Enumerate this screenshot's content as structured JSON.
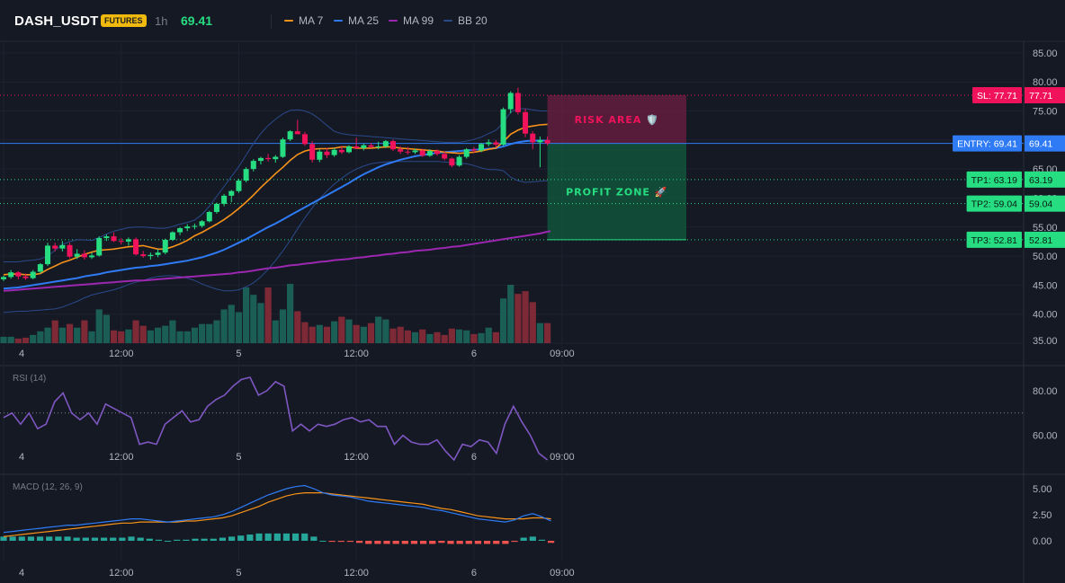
{
  "header": {
    "symbol": "DASH_USDT",
    "badge": "FUTURES",
    "interval": "1h",
    "last_price": "69.41",
    "legend": [
      {
        "label": "MA 7",
        "color": "#f7931a"
      },
      {
        "label": "MA 25",
        "color": "#2f7bf5"
      },
      {
        "label": "MA 99",
        "color": "#9c27b0"
      },
      {
        "label": "BB 20",
        "color": "#2a4a8a"
      }
    ]
  },
  "colors": {
    "up": "#26de81",
    "down": "#f0135b",
    "vol_up": "#1b5e55",
    "vol_down": "#7e2936",
    "macd_line": "#2f7bf5",
    "signal_line": "#f7931a",
    "rsi_line": "#7e57c2"
  },
  "x_axis": {
    "labels": [
      {
        "t": 0,
        "text": "4"
      },
      {
        "t": 16,
        "text": "12:00"
      },
      {
        "t": 32,
        "text": "5"
      },
      {
        "t": 48,
        "text": "12:00"
      },
      {
        "t": 64,
        "text": "6"
      },
      {
        "t": 76,
        "text": "09:00"
      }
    ]
  },
  "levels": {
    "sl": {
      "value": 77.71,
      "tag": "SL: 77.71",
      "axis": "77.71"
    },
    "entry": {
      "value": 69.41,
      "tag": "ENTRY: 69.41",
      "axis": "69.41"
    },
    "tps": [
      {
        "value": 63.19,
        "tag": "TP1: 63.19",
        "axis": "63.19"
      },
      {
        "value": 59.04,
        "tag": "TP2: 59.04",
        "axis": "59.04"
      },
      {
        "value": 52.81,
        "tag": "TP3: 52.81",
        "axis": "52.81"
      }
    ]
  },
  "zones": {
    "risk_label": "RISK AREA 🛡️",
    "profit_label": "PROFIT ZONE 🚀"
  },
  "chart_data": [
    {
      "type": "candlestick",
      "title": "DASH_USDT 1h",
      "ylim": [
        35,
        87
      ],
      "y_ticks": [
        "85.00",
        "80.00",
        "75.00",
        "70.00",
        "65.00",
        "60.00",
        "55.00",
        "50.00",
        "45.00",
        "40.00",
        "35.00"
      ],
      "x_labels": [
        "4",
        "12:00",
        "5",
        "12:00",
        "6",
        "09:00"
      ],
      "ohlc": [
        [
          46.0,
          46.6,
          45.7,
          46.4
        ],
        [
          46.4,
          47.6,
          46.1,
          47.2
        ],
        [
          47.2,
          47.4,
          46.0,
          46.5
        ],
        [
          46.5,
          47.0,
          45.9,
          46.2
        ],
        [
          46.2,
          47.6,
          46.0,
          47.3
        ],
        [
          47.3,
          48.8,
          47.0,
          48.6
        ],
        [
          48.6,
          52.3,
          48.3,
          51.8
        ],
        [
          51.8,
          52.3,
          50.8,
          51.3
        ],
        [
          51.3,
          52.6,
          50.8,
          51.9
        ],
        [
          51.9,
          52.3,
          49.6,
          49.9
        ],
        [
          49.9,
          51.2,
          49.5,
          50.4
        ],
        [
          50.4,
          51.0,
          49.4,
          49.8
        ],
        [
          49.8,
          50.6,
          49.5,
          50.1
        ],
        [
          50.1,
          53.4,
          49.9,
          53.1
        ],
        [
          53.1,
          53.7,
          52.6,
          53.4
        ],
        [
          53.4,
          54.1,
          52.4,
          52.6
        ],
        [
          52.6,
          53.1,
          52.0,
          52.5
        ],
        [
          52.5,
          53.2,
          51.8,
          52.9
        ],
        [
          52.9,
          53.2,
          50.1,
          50.3
        ],
        [
          50.3,
          50.9,
          49.7,
          50.0
        ],
        [
          50.0,
          50.6,
          49.4,
          50.2
        ],
        [
          50.2,
          51.2,
          49.8,
          50.6
        ],
        [
          50.6,
          53.0,
          50.3,
          52.8
        ],
        [
          52.8,
          54.3,
          52.6,
          54.1
        ],
        [
          54.1,
          55.0,
          53.6,
          54.8
        ],
        [
          54.8,
          55.5,
          54.3,
          55.1
        ],
        [
          55.1,
          55.6,
          54.6,
          55.2
        ],
        [
          55.2,
          56.2,
          54.9,
          56.0
        ],
        [
          56.0,
          57.8,
          55.8,
          57.6
        ],
        [
          57.6,
          59.2,
          57.3,
          59.0
        ],
        [
          59.0,
          60.7,
          58.6,
          60.4
        ],
        [
          60.4,
          61.4,
          59.3,
          61.2
        ],
        [
          61.2,
          63.3,
          60.9,
          63.0
        ],
        [
          63.0,
          65.3,
          62.7,
          65.0
        ],
        [
          65.0,
          66.7,
          64.6,
          66.4
        ],
        [
          66.4,
          67.1,
          65.8,
          66.9
        ],
        [
          66.9,
          67.6,
          66.3,
          66.7
        ],
        [
          66.7,
          67.4,
          66.1,
          67.1
        ],
        [
          67.1,
          70.4,
          66.9,
          70.1
        ],
        [
          70.1,
          71.7,
          69.8,
          71.5
        ],
        [
          71.5,
          73.5,
          71.0,
          71.0
        ],
        [
          71.0,
          71.4,
          69.0,
          69.3
        ],
        [
          69.3,
          69.8,
          66.1,
          66.6
        ],
        [
          66.6,
          68.4,
          66.2,
          68.0
        ],
        [
          68.0,
          68.6,
          66.9,
          67.4
        ],
        [
          67.4,
          68.6,
          67.1,
          68.3
        ],
        [
          68.3,
          69.0,
          67.6,
          67.9
        ],
        [
          67.9,
          69.1,
          67.7,
          68.9
        ],
        [
          68.9,
          70.4,
          68.4,
          68.6
        ],
        [
          68.6,
          69.4,
          68.2,
          69.1
        ],
        [
          69.1,
          69.5,
          68.6,
          68.8
        ],
        [
          68.8,
          69.7,
          68.4,
          68.9
        ],
        [
          68.9,
          70.0,
          68.6,
          69.8
        ],
        [
          69.8,
          70.1,
          68.1,
          68.4
        ],
        [
          68.4,
          68.9,
          67.6,
          68.0
        ],
        [
          68.0,
          68.8,
          67.5,
          67.9
        ],
        [
          67.9,
          68.5,
          67.6,
          68.2
        ],
        [
          68.2,
          68.5,
          67.1,
          67.3
        ],
        [
          67.3,
          68.4,
          67.1,
          68.1
        ],
        [
          68.1,
          68.4,
          67.3,
          67.6
        ],
        [
          67.6,
          68.0,
          66.5,
          66.8
        ],
        [
          66.8,
          67.0,
          65.3,
          65.6
        ],
        [
          65.6,
          67.4,
          65.4,
          67.1
        ],
        [
          67.1,
          68.6,
          66.8,
          68.4
        ],
        [
          68.4,
          68.8,
          67.8,
          68.2
        ],
        [
          68.2,
          69.5,
          67.9,
          69.3
        ],
        [
          69.3,
          70.1,
          68.9,
          69.6
        ],
        [
          69.6,
          70.0,
          68.7,
          69.2
        ],
        [
          69.2,
          75.6,
          69.0,
          75.3
        ],
        [
          75.3,
          78.4,
          74.6,
          78.1
        ],
        [
          78.1,
          79.0,
          74.4,
          74.8
        ],
        [
          74.8,
          75.4,
          70.5,
          71.1
        ],
        [
          71.1,
          71.5,
          68.4,
          69.6
        ],
        [
          69.6,
          70.6,
          65.3,
          70.0
        ],
        [
          70.0,
          70.6,
          69.1,
          69.41
        ]
      ],
      "ma7": [
        46.8,
        46.9,
        46.9,
        46.8,
        46.8,
        47.0,
        47.7,
        48.3,
        48.9,
        49.3,
        49.8,
        50.3,
        50.7,
        51.0,
        51.1,
        51.2,
        51.4,
        51.6,
        51.7,
        51.8,
        51.5,
        51.2,
        51.2,
        51.6,
        52.1,
        52.7,
        53.5,
        54.1,
        54.8,
        55.5,
        56.3,
        57.2,
        58.2,
        59.3,
        60.5,
        61.8,
        63.0,
        64.2,
        65.3,
        66.5,
        67.5,
        68.1,
        68.4,
        68.5,
        68.5,
        68.6,
        68.8,
        68.8,
        68.6,
        68.6,
        68.6,
        68.7,
        68.8,
        68.8,
        68.6,
        68.5,
        68.4,
        68.3,
        68.2,
        68.1,
        67.9,
        67.8,
        67.7,
        67.8,
        67.9,
        68.1,
        68.4,
        68.6,
        69.7,
        71.0,
        71.7,
        72.2,
        72.4,
        72.6,
        72.7
      ],
      "ma25": [
        44.4,
        44.5,
        44.6,
        44.8,
        45.0,
        45.2,
        45.4,
        45.6,
        45.8,
        46.0,
        46.2,
        46.5,
        46.7,
        46.9,
        47.2,
        47.4,
        47.6,
        47.8,
        48.0,
        48.1,
        48.3,
        48.4,
        48.6,
        48.8,
        49.0,
        49.2,
        49.5,
        49.8,
        50.2,
        50.6,
        51.1,
        51.7,
        52.3,
        52.9,
        53.6,
        54.3,
        55.0,
        55.6,
        56.3,
        57.0,
        57.7,
        58.4,
        59.1,
        59.8,
        60.5,
        61.2,
        61.9,
        62.6,
        63.4,
        64.1,
        64.7,
        65.3,
        65.8,
        66.2,
        66.6,
        66.9,
        67.2,
        67.4,
        67.6,
        67.8,
        67.9,
        68.0,
        68.1,
        68.2,
        68.3,
        68.4,
        68.5,
        68.6,
        68.9,
        69.3,
        69.6,
        69.8,
        69.9,
        69.9,
        69.9
      ],
      "ma99": [
        44.0,
        44.1,
        44.2,
        44.3,
        44.4,
        44.5,
        44.6,
        44.7,
        44.8,
        44.9,
        45.0,
        45.1,
        45.2,
        45.3,
        45.4,
        45.5,
        45.6,
        45.7,
        45.8,
        45.8,
        45.9,
        46.0,
        46.1,
        46.2,
        46.3,
        46.4,
        46.5,
        46.6,
        46.7,
        46.8,
        46.9,
        47.0,
        47.2,
        47.3,
        47.5,
        47.7,
        47.9,
        48.0,
        48.2,
        48.4,
        48.5,
        48.7,
        48.8,
        49.0,
        49.1,
        49.3,
        49.4,
        49.5,
        49.7,
        49.8,
        50.0,
        50.1,
        50.3,
        50.4,
        50.6,
        50.7,
        50.9,
        51.0,
        51.1,
        51.3,
        51.4,
        51.6,
        51.7,
        51.9,
        52.1,
        52.3,
        52.5,
        52.7,
        52.9,
        53.1,
        53.3,
        53.5,
        53.7,
        53.9,
        54.2
      ],
      "bb_upper": [
        49.0,
        49.0,
        49.0,
        49.2,
        49.3,
        49.5,
        50.0,
        51.0,
        52.0,
        52.5,
        52.8,
        52.8,
        52.7,
        53.2,
        53.8,
        54.3,
        54.6,
        54.9,
        55.0,
        55.0,
        54.9,
        54.8,
        54.8,
        55.1,
        55.5,
        55.8,
        56.2,
        57.2,
        58.6,
        60.3,
        62.0,
        63.7,
        65.4,
        67.4,
        69.4,
        71.1,
        72.5,
        73.6,
        74.5,
        75.1,
        75.2,
        75.0,
        74.5,
        73.6,
        72.5,
        71.5,
        71.1,
        70.9,
        70.8,
        70.7,
        70.6,
        70.5,
        70.4,
        70.3,
        70.2,
        70.1,
        70.0,
        69.9,
        69.8,
        69.7,
        69.6,
        69.6,
        69.6,
        69.8,
        70.1,
        70.5,
        71.1,
        71.7,
        73.0,
        74.8,
        75.4,
        75.4,
        75.2,
        75.0,
        75.0
      ],
      "bb_lower": [
        40.3,
        40.4,
        40.5,
        40.5,
        40.6,
        40.7,
        40.8,
        40.9,
        41.2,
        41.7,
        42.2,
        42.8,
        43.3,
        43.6,
        43.9,
        44.2,
        44.6,
        45.1,
        45.5,
        45.8,
        46.2,
        46.5,
        46.6,
        46.6,
        46.5,
        46.2,
        45.8,
        45.2,
        44.7,
        44.3,
        44.0,
        44.0,
        44.2,
        44.7,
        45.4,
        46.4,
        47.7,
        49.2,
        50.9,
        52.7,
        54.7,
        56.6,
        58.3,
        59.9,
        61.2,
        62.4,
        63.4,
        64.3,
        65.0,
        65.5,
        65.9,
        66.1,
        66.2,
        66.3,
        66.3,
        66.3,
        66.3,
        66.3,
        66.3,
        66.3,
        66.2,
        66.1,
        66.0,
        65.9,
        65.6,
        65.2,
        64.9,
        64.9,
        64.7,
        63.6,
        63.0,
        62.7,
        62.8,
        62.9,
        63.0
      ],
      "volume": [
        7,
        7,
        5,
        6,
        9,
        13,
        17,
        25,
        17,
        21,
        17,
        25,
        13,
        37,
        31,
        14,
        13,
        15,
        25,
        19,
        14,
        17,
        19,
        25,
        13,
        13,
        17,
        21,
        21,
        25,
        37,
        42,
        34,
        61,
        53,
        44,
        61,
        25,
        37,
        65,
        35,
        23,
        18,
        20,
        18,
        24,
        29,
        26,
        20,
        18,
        22,
        29,
        26,
        16,
        18,
        14,
        12,
        15,
        10,
        12,
        9,
        16,
        15,
        14,
        10,
        11,
        17,
        12,
        49,
        64,
        54,
        57,
        45,
        22,
        22
      ]
    },
    {
      "type": "line",
      "title": "RSI (14)",
      "ylim": [
        45,
        90
      ],
      "y_ticks": [
        "80.00",
        "60.00"
      ],
      "reference_line": 70,
      "values": [
        68,
        70,
        65,
        70,
        63,
        65,
        75,
        79,
        70,
        67,
        70,
        65,
        74,
        72,
        70,
        68,
        56,
        57,
        56,
        65,
        68,
        71,
        66,
        67,
        73,
        76,
        78,
        82,
        85,
        86,
        78,
        80,
        84,
        82,
        62,
        65,
        62,
        65,
        64,
        65,
        67,
        68,
        66,
        67,
        64,
        64,
        56,
        60,
        57,
        56,
        56,
        58,
        53,
        49,
        56,
        55,
        58,
        57,
        52,
        65,
        73,
        66,
        60,
        52,
        49
      ]
    },
    {
      "type": "line",
      "title": "MACD (12, 26, 9)",
      "ylim": [
        -1.2,
        6.0
      ],
      "y_ticks": [
        "5.00",
        "2.50",
        "0.00"
      ],
      "macd": [
        0.8,
        0.9,
        1.0,
        1.1,
        1.2,
        1.3,
        1.4,
        1.5,
        1.5,
        1.6,
        1.7,
        1.8,
        1.9,
        2.0,
        2.1,
        2.1,
        2.0,
        1.9,
        1.8,
        1.9,
        2.0,
        2.1,
        2.2,
        2.3,
        2.5,
        2.8,
        3.2,
        3.6,
        4.0,
        4.4,
        4.7,
        5.0,
        5.2,
        5.3,
        5.0,
        4.6,
        4.4,
        4.3,
        4.2,
        4.0,
        3.8,
        3.7,
        3.6,
        3.5,
        3.4,
        3.3,
        3.2,
        3.0,
        2.9,
        2.7,
        2.5,
        2.3,
        2.1,
        2.0,
        1.9,
        1.8,
        2.0,
        2.4,
        2.6,
        2.3,
        1.9
      ],
      "signal": [
        0.4,
        0.5,
        0.6,
        0.7,
        0.8,
        0.9,
        1.0,
        1.1,
        1.2,
        1.3,
        1.4,
        1.5,
        1.6,
        1.7,
        1.7,
        1.8,
        1.8,
        1.8,
        1.8,
        1.8,
        1.9,
        1.9,
        2.0,
        2.1,
        2.2,
        2.4,
        2.7,
        3.0,
        3.3,
        3.7,
        4.0,
        4.3,
        4.5,
        4.6,
        4.6,
        4.6,
        4.5,
        4.4,
        4.3,
        4.2,
        4.1,
        4.0,
        3.9,
        3.8,
        3.7,
        3.6,
        3.5,
        3.3,
        3.1,
        3.0,
        2.8,
        2.6,
        2.4,
        2.3,
        2.2,
        2.1,
        2.1,
        2.1,
        2.2,
        2.2,
        2.1
      ],
      "histogram": [
        0.4,
        0.4,
        0.4,
        0.4,
        0.4,
        0.4,
        0.4,
        0.4,
        0.3,
        0.3,
        0.3,
        0.3,
        0.3,
        0.3,
        0.4,
        0.3,
        0.2,
        0.1,
        0.0,
        0.1,
        0.1,
        0.2,
        0.2,
        0.2,
        0.3,
        0.4,
        0.5,
        0.6,
        0.7,
        0.7,
        0.7,
        0.7,
        0.7,
        0.7,
        0.4,
        0.0,
        -0.1,
        -0.1,
        -0.1,
        -0.2,
        -0.3,
        -0.3,
        -0.3,
        -0.3,
        -0.3,
        -0.3,
        -0.3,
        -0.3,
        -0.2,
        -0.3,
        -0.3,
        -0.3,
        -0.3,
        -0.3,
        -0.3,
        -0.3,
        -0.1,
        0.3,
        0.4,
        0.1,
        -0.2
      ]
    }
  ]
}
